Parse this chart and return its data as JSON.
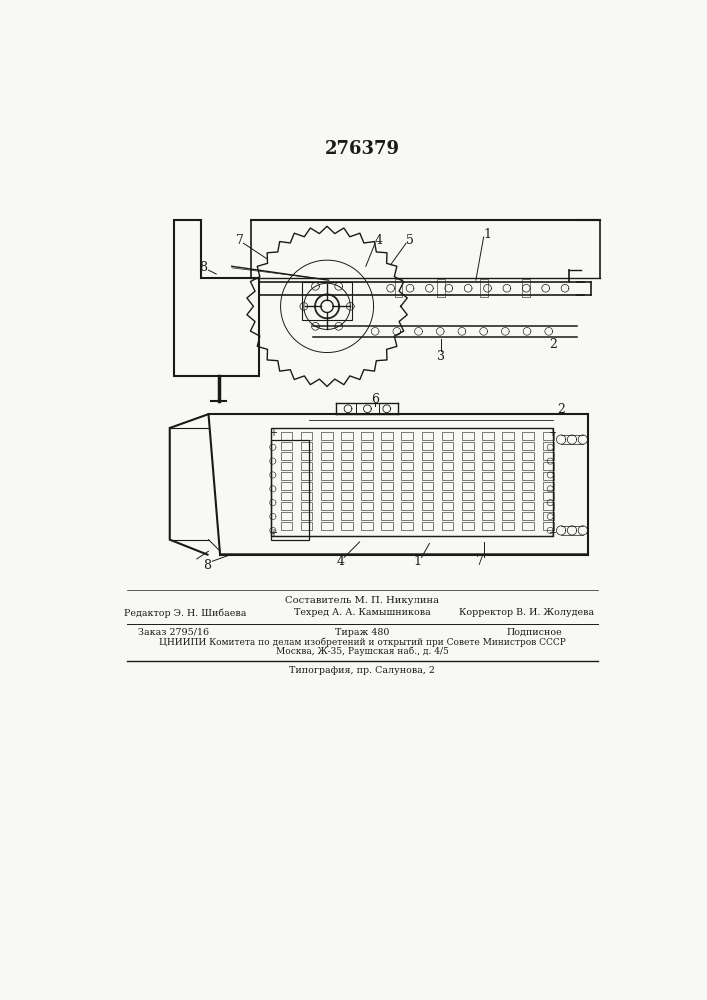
{
  "patent_number": "276379",
  "bg_color": "#f8f8f4",
  "line_color": "#1a1a1a",
  "footer": {
    "composer": "Составитель М. П. Никулина",
    "editor": "Редактор Э. Н. Шибаева",
    "techred": "Техред А. А. Камышникова",
    "corrector": "Корректор В. И. Жолудева",
    "order": "Заказ 2795/16",
    "tirage": "Тираж 480",
    "podpisnoe": "Подписное",
    "cniipи": "ЦНИИПИ Комитета по делам изобретений и открытий при Совете Министров СССР",
    "moscow": "Москва, Ж-35, Раушская наб., д. 4/5",
    "typography": "Типография, пр. Салунова, 2"
  }
}
